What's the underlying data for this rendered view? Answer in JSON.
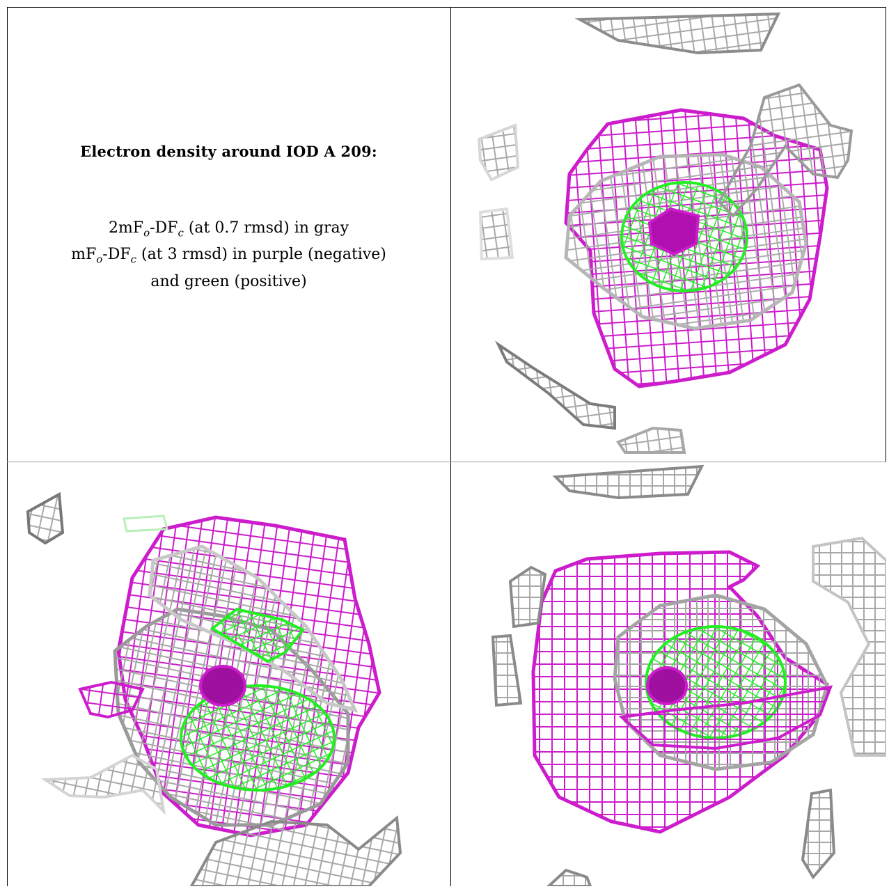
{
  "caption": {
    "title": "Electron density around IOD A 209:",
    "line1": {
      "pre": "2mF",
      "sub1": "o",
      "mid": "-DF",
      "sub2": "c",
      "post": " (at 0.7 rmsd) in gray"
    },
    "line2": {
      "pre": "mF",
      "sub1": "o",
      "mid": "-DF",
      "sub2": "c",
      "post": " (at 3 rmsd) in purple (negative)"
    },
    "line3": "and green (positive)"
  },
  "colors": {
    "gray_mesh": "#a8a8a8",
    "dark_gray_mesh": "#6e6e6e",
    "purple_mesh": "#cc1ccc",
    "green_mesh": "#22ee22",
    "background": "#ffffff",
    "border": "#000000"
  },
  "panels": [
    {
      "view": "view-1",
      "position": "top-right"
    },
    {
      "view": "view-2",
      "position": "bottom-left"
    },
    {
      "view": "view-3",
      "position": "bottom-right"
    }
  ]
}
